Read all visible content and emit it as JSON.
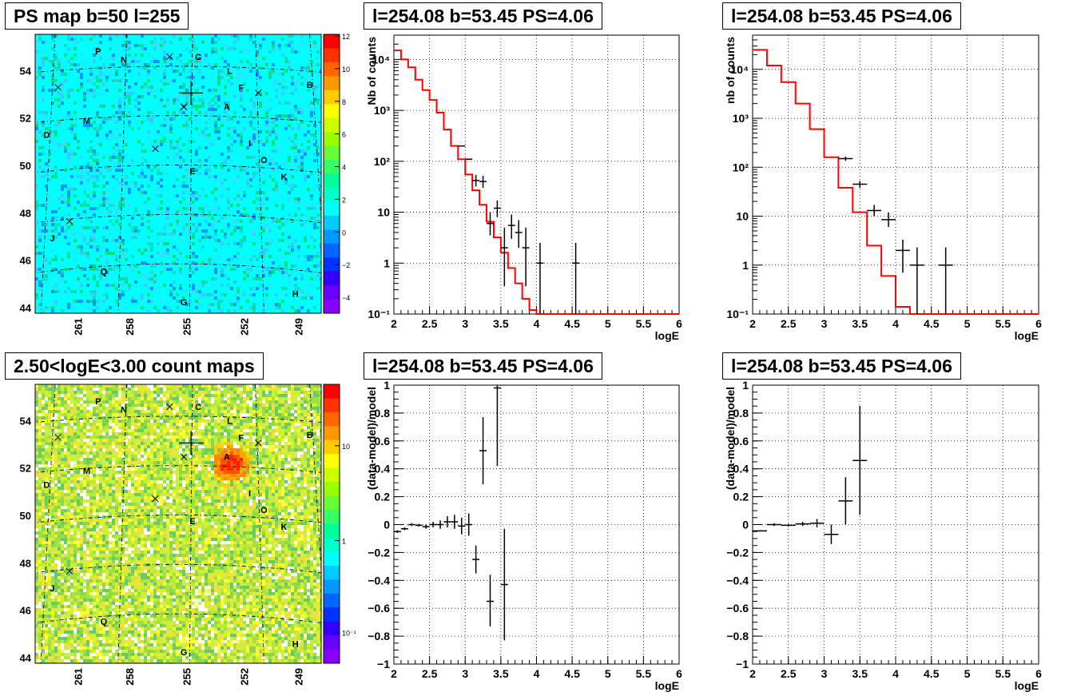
{
  "titles": {
    "tl": "PS map b=50 l=255",
    "tc": "l=254.08 b=53.45 PS=4.06",
    "tr": "l=254.08 b=53.45 PS=4.06",
    "bl": "2.50<logE<3.00 count maps",
    "bc": "l=254.08 b=53.45 PS=4.06",
    "br": "l=254.08 b=53.45 PS=4.06"
  },
  "colors": {
    "model_line": "#ff0000",
    "data_marker": "#000000",
    "map_top_bg": "#00ffff",
    "map_bottom_bg": "#8cd84a"
  },
  "chart_data": [
    {
      "id": "map_ps",
      "type": "heatmap",
      "title": "PS map b=50 l=255",
      "zlim": [
        -5,
        12
      ],
      "z_ticks": [
        "12",
        "10",
        "8",
        "6",
        "4",
        "2",
        "0",
        "−2",
        "−4"
      ],
      "lat_ticks": [
        "54",
        "52",
        "50",
        "48",
        "46",
        "44"
      ],
      "lon_ticks": [
        "261",
        "258",
        "255",
        "252",
        "249"
      ],
      "source_labels": [
        "P",
        "N",
        "C",
        "L",
        "F",
        "B",
        "A",
        "M",
        "D",
        "I",
        "O",
        "K",
        "E",
        "J",
        "Q",
        "G",
        "H"
      ]
    },
    {
      "id": "spec_a",
      "type": "line",
      "title": "l=254.08 b=53.45 PS=4.06",
      "xlabel": "logE",
      "ylabel": "Nb of counts",
      "xlim": [
        2,
        6
      ],
      "ylim": [
        0.1,
        30000
      ],
      "yscale": "log",
      "x_ticks": [
        "2",
        "2.5",
        "3",
        "3.5",
        "4",
        "4.5",
        "5",
        "5.5",
        "6"
      ],
      "y_ticks": [
        "10⁻¹",
        "1",
        "10",
        "10²",
        "10³",
        "10⁴"
      ],
      "model_step": {
        "x": [
          2.0,
          2.1,
          2.2,
          2.3,
          2.4,
          2.5,
          2.6,
          2.7,
          2.8,
          2.9,
          3.0,
          3.1,
          3.2,
          3.3,
          3.4,
          3.5,
          3.6,
          3.7,
          3.8,
          3.9,
          4.0,
          4.1,
          4.2,
          4.3,
          4.4,
          4.5,
          4.6,
          4.7,
          4.8,
          4.9,
          5.0,
          5.1,
          5.2,
          5.3,
          5.4,
          5.5,
          5.6,
          5.7,
          5.8,
          5.9
        ],
        "y": [
          15000,
          10000,
          7000,
          4000,
          2500,
          1600,
          900,
          420,
          200,
          110,
          55,
          27,
          14,
          6.5,
          3.2,
          1.6,
          0.8,
          0.4,
          0.2,
          0.12,
          0.1,
          0.1,
          0.1,
          0.1,
          0.1,
          0.1,
          0.1,
          0.1,
          0.1,
          0.1,
          0.1,
          0.1,
          0.1,
          0.1,
          0.1,
          0.1,
          0.1,
          0.1,
          0.1,
          0.1
        ]
      },
      "points": [
        {
          "x": 3.15,
          "y": 42,
          "lo": 32,
          "hi": 54
        },
        {
          "x": 3.25,
          "y": 40,
          "lo": 30,
          "hi": 52
        },
        {
          "x": 3.35,
          "y": 6,
          "lo": 3.5,
          "hi": 10
        },
        {
          "x": 3.45,
          "y": 12,
          "lo": 8,
          "hi": 17
        },
        {
          "x": 3.55,
          "y": 2,
          "lo": 0.35,
          "hi": 5
        },
        {
          "x": 3.65,
          "y": 5.5,
          "lo": 3,
          "hi": 9
        },
        {
          "x": 3.75,
          "y": 4,
          "lo": 2,
          "hi": 7
        },
        {
          "x": 3.85,
          "y": 2,
          "lo": 0.35,
          "hi": 5
        },
        {
          "x": 4.05,
          "y": 1,
          "lo": 0.1,
          "hi": 2.5
        },
        {
          "x": 4.55,
          "y": 1,
          "lo": 0.1,
          "hi": 2.5
        }
      ],
      "point_xerr": 0.05
    },
    {
      "id": "spec_b",
      "type": "line",
      "title": "l=254.08 b=53.45 PS=4.06",
      "xlabel": "logE",
      "ylabel": "nb of counts",
      "xlim": [
        2,
        6
      ],
      "ylim": [
        0.1,
        50000
      ],
      "yscale": "log",
      "x_ticks": [
        "2",
        "2.5",
        "3",
        "3.5",
        "4",
        "4.5",
        "5",
        "5.5",
        "6"
      ],
      "y_ticks": [
        "10⁻¹",
        "1",
        "10",
        "10²",
        "10³",
        "10⁴"
      ],
      "model_step": {
        "x": [
          2.0,
          2.2,
          2.4,
          2.6,
          2.8,
          3.0,
          3.2,
          3.4,
          3.6,
          3.8,
          4.0,
          4.2,
          4.4,
          4.6,
          4.8,
          5.0,
          5.2,
          5.4,
          5.6,
          5.8
        ],
        "y": [
          25000,
          12000,
          5500,
          2000,
          600,
          160,
          38,
          12,
          2.5,
          0.6,
          0.14,
          0.1,
          0.1,
          0.1,
          0.1,
          0.1,
          0.1,
          0.1,
          0.1,
          0.1
        ]
      },
      "points": [
        {
          "x": 3.3,
          "y": 150,
          "lo": 135,
          "hi": 165
        },
        {
          "x": 3.5,
          "y": 45,
          "lo": 38,
          "hi": 52
        },
        {
          "x": 3.7,
          "y": 13,
          "lo": 10,
          "hi": 17
        },
        {
          "x": 3.9,
          "y": 8.5,
          "lo": 6,
          "hi": 12
        },
        {
          "x": 4.1,
          "y": 2,
          "lo": 0.7,
          "hi": 3.3
        },
        {
          "x": 4.3,
          "y": 1,
          "lo": 0.1,
          "hi": 2.3
        },
        {
          "x": 4.7,
          "y": 1,
          "lo": 0.1,
          "hi": 2.3
        }
      ],
      "point_xerr": 0.1
    },
    {
      "id": "map_counts",
      "type": "heatmap",
      "title": "2.50<logE<3.00 count maps",
      "z_ticks": [
        "10",
        "1",
        "10⁻¹"
      ],
      "lat_ticks": [
        "54",
        "52",
        "50",
        "48",
        "46",
        "44"
      ],
      "lon_ticks": [
        "261",
        "258",
        "255",
        "252",
        "249"
      ],
      "source_labels": [
        "P",
        "N",
        "C",
        "L",
        "F",
        "B",
        "A",
        "M",
        "D",
        "I",
        "O",
        "K",
        "E",
        "J",
        "Q",
        "G",
        "H"
      ]
    },
    {
      "id": "resid_a",
      "type": "scatter",
      "title": "l=254.08 b=53.45 PS=4.06",
      "xlabel": "logE",
      "ylabel": "(data-model)/model",
      "xlim": [
        2,
        6
      ],
      "ylim": [
        -1,
        1
      ],
      "x_ticks": [
        "2",
        "2.5",
        "3",
        "3.5",
        "4",
        "4.5",
        "5",
        "5.5",
        "6"
      ],
      "y_ticks": [
        "1",
        "0.8",
        "0.6",
        "0.4",
        "0.2",
        "0",
        "−0.2",
        "−0.4",
        "−0.6",
        "−0.8",
        "−1"
      ],
      "points": [
        {
          "x": 2.05,
          "y": -0.05,
          "lo": -0.06,
          "hi": -0.04
        },
        {
          "x": 2.15,
          "y": -0.03,
          "lo": -0.04,
          "hi": -0.02
        },
        {
          "x": 2.25,
          "y": 0.0,
          "lo": -0.01,
          "hi": 0.01
        },
        {
          "x": 2.35,
          "y": -0.005,
          "lo": -0.015,
          "hi": 0.005
        },
        {
          "x": 2.45,
          "y": -0.015,
          "lo": -0.03,
          "hi": 0.0
        },
        {
          "x": 2.55,
          "y": 0.0,
          "lo": -0.02,
          "hi": 0.02
        },
        {
          "x": 2.65,
          "y": 0.0,
          "lo": -0.03,
          "hi": 0.03
        },
        {
          "x": 2.75,
          "y": 0.02,
          "lo": -0.02,
          "hi": 0.06
        },
        {
          "x": 2.85,
          "y": 0.02,
          "lo": -0.03,
          "hi": 0.07
        },
        {
          "x": 2.95,
          "y": -0.01,
          "lo": -0.07,
          "hi": 0.05
        },
        {
          "x": 3.05,
          "y": 0.0,
          "lo": -0.08,
          "hi": 0.08
        },
        {
          "x": 3.15,
          "y": -0.25,
          "lo": -0.35,
          "hi": -0.15
        },
        {
          "x": 3.25,
          "y": 0.53,
          "lo": 0.29,
          "hi": 0.77
        },
        {
          "x": 3.35,
          "y": -0.55,
          "lo": -0.73,
          "hi": -0.36
        },
        {
          "x": 3.45,
          "y": 0.98,
          "lo": 0.42,
          "hi": 1.0
        },
        {
          "x": 3.55,
          "y": -0.43,
          "lo": -0.83,
          "hi": -0.03
        }
      ],
      "point_xerr": 0.05
    },
    {
      "id": "resid_b",
      "type": "scatter",
      "title": "l=254.08 b=53.45 PS=4.06",
      "xlabel": "logE",
      "ylabel": "(data-model)/model",
      "xlim": [
        2,
        6
      ],
      "ylim": [
        -1,
        1
      ],
      "x_ticks": [
        "2",
        "2.5",
        "3",
        "3.5",
        "4",
        "4.5",
        "5",
        "5.5",
        "6"
      ],
      "y_ticks": [
        "1",
        "0.8",
        "0.6",
        "0.4",
        "0.2",
        "0",
        "−0.2",
        "−0.4",
        "−0.6",
        "−0.8",
        "−1"
      ],
      "points": [
        {
          "x": 2.1,
          "y": -0.045,
          "lo": -0.05,
          "hi": -0.04
        },
        {
          "x": 2.3,
          "y": 0.0,
          "lo": -0.01,
          "hi": 0.01
        },
        {
          "x": 2.5,
          "y": -0.005,
          "lo": -0.015,
          "hi": 0.005
        },
        {
          "x": 2.7,
          "y": 0.005,
          "lo": -0.01,
          "hi": 0.02
        },
        {
          "x": 2.9,
          "y": 0.01,
          "lo": -0.02,
          "hi": 0.04
        },
        {
          "x": 3.1,
          "y": -0.07,
          "lo": -0.14,
          "hi": 0.0
        },
        {
          "x": 3.3,
          "y": 0.17,
          "lo": 0.0,
          "hi": 0.34
        },
        {
          "x": 3.5,
          "y": 0.46,
          "lo": 0.07,
          "hi": 0.85
        }
      ],
      "point_xerr": 0.1
    }
  ]
}
